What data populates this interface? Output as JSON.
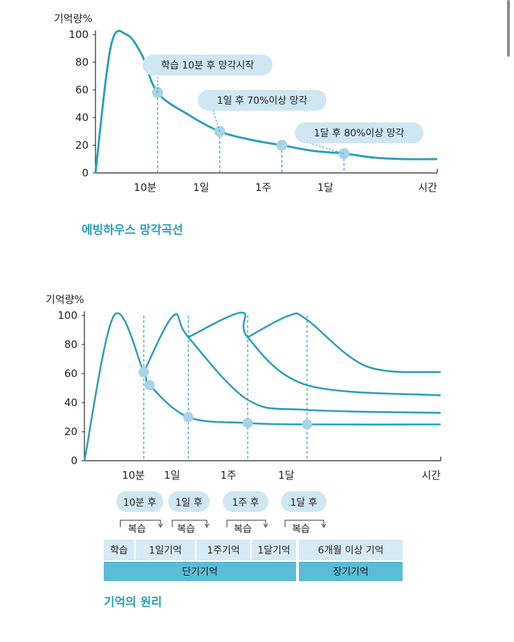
{
  "chart_data": [
    {
      "type": "line",
      "title": "",
      "ylabel": "기억량%",
      "yticks": [
        "0",
        "20",
        "40",
        "60",
        "80",
        "100"
      ],
      "ylim": [
        0,
        100
      ],
      "xticks": [
        "10분",
        "1일",
        "1주",
        "1달"
      ],
      "xlabel": "시간",
      "series": [
        {
          "values": [
            [
              0,
              0
            ],
            [
              0.5,
              92
            ],
            [
              1,
              100
            ],
            [
              1.5,
              85
            ],
            [
              2,
              58
            ],
            [
              3,
              42
            ],
            [
              4,
              30
            ],
            [
              5,
              24
            ],
            [
              6,
              20
            ],
            [
              7,
              16
            ],
            [
              8,
              14
            ],
            [
              9,
              11
            ],
            [
              10,
              10
            ],
            [
              11,
              10
            ]
          ]
        }
      ],
      "points": [
        {
          "x": 2,
          "y": 58
        },
        {
          "x": 4,
          "y": 30
        },
        {
          "x": 6,
          "y": 20
        },
        {
          "x": 8,
          "y": 14
        }
      ],
      "annotations": [
        "학습 10분 후 망각시작",
        "1일 후 70%이상 망각",
        "1달 후 80%이상 망각"
      ],
      "caption": "에빙하우스 망각곡선"
    },
    {
      "type": "line",
      "title": "",
      "ylabel": "기억량%",
      "yticks": [
        "0",
        "20",
        "40",
        "60",
        "80",
        "100"
      ],
      "ylim": [
        0,
        100
      ],
      "xticks": [
        "10분",
        "1일",
        "1주",
        "1달"
      ],
      "xlabel": "시간",
      "series": [
        {
          "values": [
            [
              0,
              0
            ],
            [
              1,
              100
            ],
            [
              2,
              61
            ],
            [
              2.2,
              52
            ],
            [
              4,
              30
            ],
            [
              6,
              26
            ],
            [
              8,
              25
            ],
            [
              12,
              25
            ]
          ]
        },
        {
          "values": [
            [
              2,
              61
            ],
            [
              3,
              100
            ],
            [
              4,
              85
            ],
            [
              6,
              42
            ],
            [
              8,
              35
            ],
            [
              12,
              33
            ]
          ]
        },
        {
          "values": [
            [
              4,
              85
            ],
            [
              5,
              102
            ],
            [
              6,
              85
            ],
            [
              8,
              52
            ],
            [
              12,
              45
            ]
          ]
        },
        {
          "values": [
            [
              6,
              85
            ],
            [
              7,
              100
            ],
            [
              8,
              97
            ],
            [
              10,
              65
            ],
            [
              12,
              61
            ]
          ]
        }
      ],
      "points": [
        {
          "x": 2,
          "y": 61
        },
        {
          "x": 2.2,
          "y": 52
        },
        {
          "x": 4,
          "y": 30
        },
        {
          "x": 6,
          "y": 26
        },
        {
          "x": 8,
          "y": 25
        }
      ],
      "review_labels": [
        "10분 후",
        "1일 후",
        "1주 후",
        "1달 후"
      ],
      "review_action": "복습",
      "memory_row": [
        "학습",
        "1일기억",
        "1주기억",
        "1달기억",
        "6개월 이상 기억"
      ],
      "memory_types": [
        "단기기억",
        "장기기억"
      ],
      "caption": "기억의 원리"
    }
  ]
}
